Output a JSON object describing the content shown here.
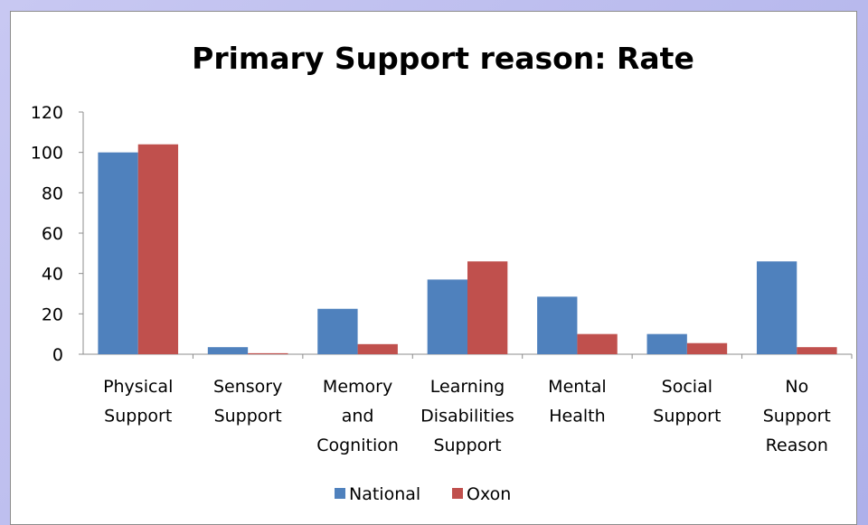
{
  "chart_data": {
    "type": "bar",
    "title": "Primary Support reason: Rate",
    "categories": [
      [
        "Physical",
        "Support"
      ],
      [
        "Sensory",
        "Support"
      ],
      [
        "Memory",
        "and",
        "Cognition"
      ],
      [
        "Learning",
        "Disabilities",
        "Support"
      ],
      [
        "Mental",
        "Health"
      ],
      [
        "Social",
        "Support"
      ],
      [
        "No",
        "Support",
        "Reason"
      ]
    ],
    "series": [
      {
        "name": "National",
        "color": "#4f81bd",
        "values": [
          100,
          3.5,
          22.5,
          37,
          28.5,
          10,
          46
        ]
      },
      {
        "name": "Oxon",
        "color": "#c0504d",
        "values": [
          104,
          0.5,
          5,
          46,
          10,
          5.5,
          3.5
        ]
      }
    ],
    "ylim": [
      0,
      120
    ],
    "yticks": [
      0,
      20,
      40,
      60,
      80,
      100,
      120
    ],
    "grid": false,
    "legend": "bottom"
  }
}
